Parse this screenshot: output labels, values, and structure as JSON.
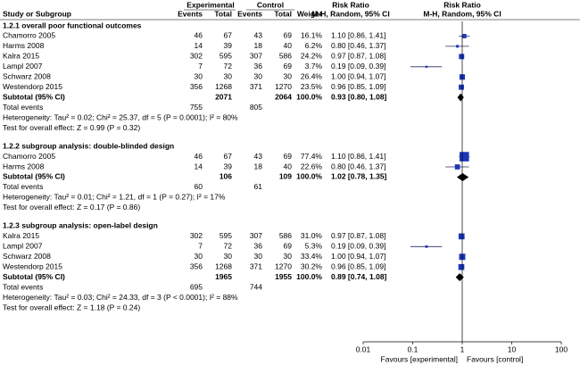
{
  "chart_data": {
    "type": "forest",
    "headers": {
      "experimental": "Experimental",
      "control": "Control",
      "rr_text": "Risk Ratio",
      "rr_plot": "Risk Ratio",
      "study": "Study or Subgroup",
      "exp_events": "Events",
      "exp_total": "Total",
      "ctl_events": "Events",
      "ctl_total": "Total",
      "weight": "Weight",
      "method_text": "M-H, Random, 95% CI",
      "method_plot": "M-H, Random, 95% CI"
    },
    "subgroups": [
      {
        "title": "1.2.1 overall poor functional outcomes",
        "studies": [
          {
            "name": "Chamorro 2005",
            "exp_events": 46,
            "exp_total": 67,
            "ctl_events": 43,
            "ctl_total": 69,
            "weight": 16.1,
            "weight_label": "16.1%",
            "rr": 1.1,
            "lo": 0.86,
            "hi": 1.41,
            "ci_label": "1.10 [0.86, 1.41]"
          },
          {
            "name": "Harms 2008",
            "exp_events": 14,
            "exp_total": 39,
            "ctl_events": 18,
            "ctl_total": 40,
            "weight": 6.2,
            "weight_label": "6.2%",
            "rr": 0.8,
            "lo": 0.46,
            "hi": 1.37,
            "ci_label": "0.80 [0.46, 1.37]"
          },
          {
            "name": "Kalra 2015",
            "exp_events": 302,
            "exp_total": 595,
            "ctl_events": 307,
            "ctl_total": 586,
            "weight": 24.2,
            "weight_label": "24.2%",
            "rr": 0.97,
            "lo": 0.87,
            "hi": 1.08,
            "ci_label": "0.97 [0.87, 1.08]"
          },
          {
            "name": "Lampl 2007",
            "exp_events": 7,
            "exp_total": 72,
            "ctl_events": 36,
            "ctl_total": 69,
            "weight": 3.7,
            "weight_label": "3.7%",
            "rr": 0.19,
            "lo": 0.09,
            "hi": 0.39,
            "ci_label": "0.19 [0.09, 0.39]"
          },
          {
            "name": "Schwarz 2008",
            "exp_events": 30,
            "exp_total": 30,
            "ctl_events": 30,
            "ctl_total": 30,
            "weight": 26.4,
            "weight_label": "26.4%",
            "rr": 1.0,
            "lo": 0.94,
            "hi": 1.07,
            "ci_label": "1.00 [0.94, 1.07]"
          },
          {
            "name": "Westendorp 2015",
            "exp_events": 356,
            "exp_total": 1268,
            "ctl_events": 371,
            "ctl_total": 1270,
            "weight": 23.5,
            "weight_label": "23.5%",
            "rr": 0.96,
            "lo": 0.85,
            "hi": 1.09,
            "ci_label": "0.96 [0.85, 1.09]"
          }
        ],
        "subtotal": {
          "label": "Subtotal (95% CI)",
          "exp_total": 2071,
          "ctl_total": 2064,
          "weight": 100.0,
          "weight_label": "100.0%",
          "rr": 0.93,
          "lo": 0.8,
          "hi": 1.08,
          "ci_label": "0.93 [0.80, 1.08]"
        },
        "total_events": {
          "label": "Total events",
          "exp": 755,
          "ctl": 805
        },
        "heterogeneity": "Heterogeneity: Tau² = 0.02; Chi² = 25.37, df = 5 (P = 0.0001); I² = 80%",
        "overall_effect": "Test for overall effect: Z = 0.99 (P = 0.32)"
      },
      {
        "title": "1.2.2 subgroup analysis: double-blinded design",
        "studies": [
          {
            "name": "Chamorro 2005",
            "exp_events": 46,
            "exp_total": 67,
            "ctl_events": 43,
            "ctl_total": 69,
            "weight": 77.4,
            "weight_label": "77.4%",
            "rr": 1.1,
            "lo": 0.86,
            "hi": 1.41,
            "ci_label": "1.10 [0.86, 1.41]"
          },
          {
            "name": "Harms 2008",
            "exp_events": 14,
            "exp_total": 39,
            "ctl_events": 18,
            "ctl_total": 40,
            "weight": 22.6,
            "weight_label": "22.6%",
            "rr": 0.8,
            "lo": 0.46,
            "hi": 1.37,
            "ci_label": "0.80 [0.46, 1.37]"
          }
        ],
        "subtotal": {
          "label": "Subtotal (95% CI)",
          "exp_total": 106,
          "ctl_total": 109,
          "weight": 100.0,
          "weight_label": "100.0%",
          "rr": 1.02,
          "lo": 0.78,
          "hi": 1.35,
          "ci_label": "1.02 [0.78, 1.35]"
        },
        "total_events": {
          "label": "Total events",
          "exp": 60,
          "ctl": 61
        },
        "heterogeneity": "Heterogeneity: Tau² = 0.01; Chi² = 1.21, df = 1 (P = 0.27); I² = 17%",
        "overall_effect": "Test for overall effect: Z = 0.17 (P = 0.86)"
      },
      {
        "title": "1.2.3 subgroup analysis: open-label design",
        "studies": [
          {
            "name": "Kalra 2015",
            "exp_events": 302,
            "exp_total": 595,
            "ctl_events": 307,
            "ctl_total": 586,
            "weight": 31.0,
            "weight_label": "31.0%",
            "rr": 0.97,
            "lo": 0.87,
            "hi": 1.08,
            "ci_label": "0.97 [0.87, 1.08]"
          },
          {
            "name": "Lampl 2007",
            "exp_events": 7,
            "exp_total": 72,
            "ctl_events": 36,
            "ctl_total": 69,
            "weight": 5.3,
            "weight_label": "5.3%",
            "rr": 0.19,
            "lo": 0.09,
            "hi": 0.39,
            "ci_label": "0.19 [0.09, 0.39]"
          },
          {
            "name": "Schwarz 2008",
            "exp_events": 30,
            "exp_total": 30,
            "ctl_events": 30,
            "ctl_total": 30,
            "weight": 33.4,
            "weight_label": "33.4%",
            "rr": 1.0,
            "lo": 0.94,
            "hi": 1.07,
            "ci_label": "1.00 [0.94, 1.07]"
          },
          {
            "name": "Westendorp 2015",
            "exp_events": 356,
            "exp_total": 1268,
            "ctl_events": 371,
            "ctl_total": 1270,
            "weight": 30.2,
            "weight_label": "30.2%",
            "rr": 0.96,
            "lo": 0.85,
            "hi": 1.09,
            "ci_label": "0.96 [0.85, 1.09]"
          }
        ],
        "subtotal": {
          "label": "Subtotal (95% CI)",
          "exp_total": 1965,
          "ctl_total": 1955,
          "weight": 100.0,
          "weight_label": "100.0%",
          "rr": 0.89,
          "lo": 0.74,
          "hi": 1.08,
          "ci_label": "0.89 [0.74, 1.08]"
        },
        "total_events": {
          "label": "Total events",
          "exp": 695,
          "ctl": 744
        },
        "heterogeneity": "Heterogeneity: Tau² = 0.03; Chi² = 24.33, df = 3 (P < 0.0001); I² = 88%",
        "overall_effect": "Test for overall effect: Z = 1.18 (P = 0.24)"
      }
    ],
    "xlim": [
      0.01,
      100
    ],
    "xscale": "log",
    "xticks": [
      0.01,
      0.1,
      1,
      10,
      100
    ],
    "xlabel_left": "Favours [experimental]",
    "xlabel_right": "Favours [control]",
    "color": "#1b36b8"
  }
}
